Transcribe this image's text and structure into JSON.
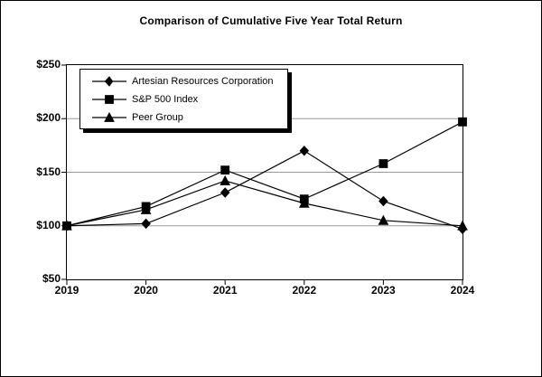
{
  "figure": {
    "title": "Comparison of Cumulative Five Year Total Return"
  },
  "chart_data": {
    "type": "line",
    "title": "Comparison of Cumulative Five Year Total Return",
    "categories": [
      "2019",
      "2020",
      "2021",
      "2022",
      "2023",
      "2024"
    ],
    "series": [
      {
        "name": "Artesian Resources Corporation",
        "marker": "diamond",
        "values": [
          100,
          102,
          131,
          170,
          123,
          97
        ]
      },
      {
        "name": "S&P 500 Index",
        "marker": "square",
        "values": [
          100,
          118,
          152,
          125,
          158,
          197
        ]
      },
      {
        "name": "Peer Group",
        "marker": "triangle",
        "values": [
          100,
          115,
          142,
          121,
          105,
          100
        ]
      }
    ],
    "xlabel": "",
    "ylabel": "",
    "ylim": [
      50,
      250
    ],
    "y_ticks": [
      250,
      200,
      150,
      100,
      50
    ],
    "y_tick_labels": [
      "$250",
      "$200",
      "$150",
      "$100",
      "$50"
    ],
    "gridlines": [
      200,
      150,
      100
    ],
    "grid": "horizontal",
    "legend_position": "upper-left-inside",
    "line_color": "#000000",
    "gridline_color": "#999999",
    "axis_color": "#000000",
    "background_color": "#ffffff"
  }
}
